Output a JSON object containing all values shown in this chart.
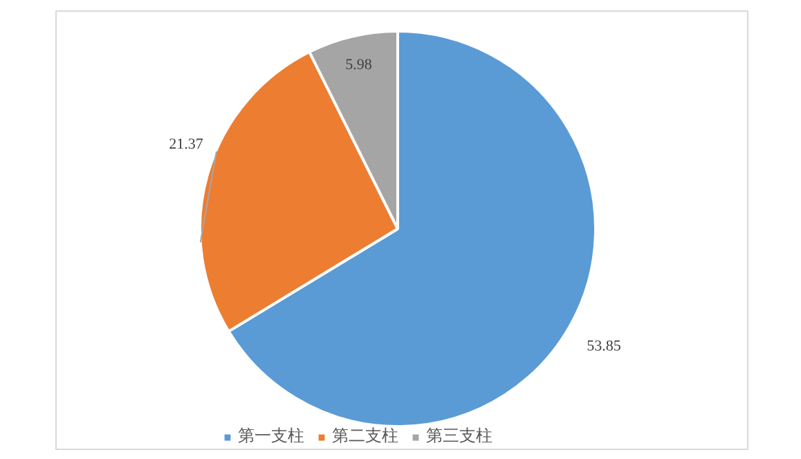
{
  "chart_data": {
    "type": "pie",
    "categories": [
      "第一支柱",
      "第二支柱",
      "第三支柱"
    ],
    "values": [
      53.85,
      21.37,
      5.98
    ],
    "colors": [
      "#5b9bd5",
      "#ed7d31",
      "#a5a5a5"
    ],
    "data_labels": true,
    "legend": "bottom"
  }
}
